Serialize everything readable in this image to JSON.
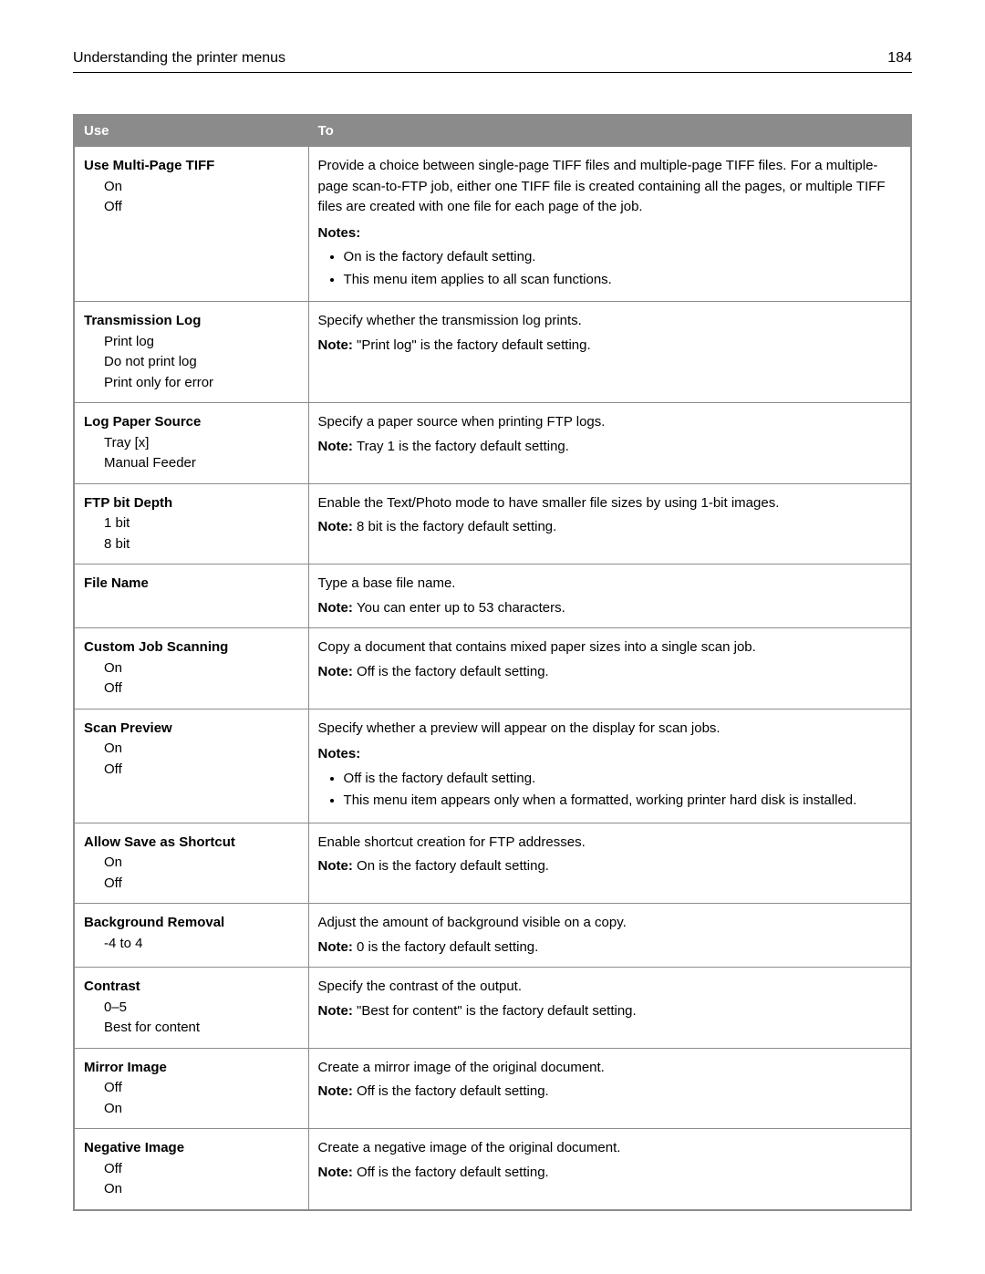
{
  "header": {
    "title": "Understanding the printer menus",
    "page": "184"
  },
  "columns": {
    "use": "Use",
    "to": "To"
  },
  "noteLabel": "Note:",
  "notesLabel": "Notes:",
  "rows": [
    {
      "name": "Use Multi‑Page TIFF",
      "options": [
        "On",
        "Off"
      ],
      "description": "Provide a choice between single-page TIFF files and multiple‑page TIFF files. For a multiple-page scan‑to‑FTP job, either one TIFF file is created containing all the pages, or multiple TIFF files are created with one file for each page of the job.",
      "notes": [
        "On is the factory default setting.",
        "This menu item applies to all scan functions."
      ]
    },
    {
      "name": "Transmission Log",
      "options": [
        "Print log",
        "Do not print log",
        "Print only for error"
      ],
      "description": "Specify whether the transmission log prints.",
      "note": "\"Print log\" is the factory default setting."
    },
    {
      "name": "Log Paper Source",
      "options": [
        "Tray [x]",
        "Manual Feeder"
      ],
      "description": "Specify a paper source when printing FTP logs.",
      "note": "Tray 1 is the factory default setting."
    },
    {
      "name": "FTP bit Depth",
      "options": [
        "1 bit",
        "8 bit"
      ],
      "description": "Enable the Text/Photo mode to have smaller file sizes by using 1‑bit images.",
      "note": "8 bit is the factory default setting."
    },
    {
      "name": "File Name",
      "options": [],
      "description": "Type a base file name.",
      "note": "You can enter up to 53 characters."
    },
    {
      "name": "Custom Job Scanning",
      "options": [
        "On",
        "Off"
      ],
      "description": "Copy a document that contains mixed paper sizes into a single scan job.",
      "note": "Off is the factory default setting."
    },
    {
      "name": "Scan Preview",
      "options": [
        "On",
        "Off"
      ],
      "description": "Specify whether a preview will appear on the display for scan jobs.",
      "notes": [
        "Off is the factory default setting.",
        "This menu item appears only when a formatted, working printer hard disk is installed."
      ]
    },
    {
      "name": "Allow Save as Shortcut",
      "options": [
        "On",
        "Off"
      ],
      "description": "Enable shortcut creation for FTP addresses.",
      "note": "On is the factory default setting."
    },
    {
      "name": "Background Removal",
      "options": [
        "-4 to 4"
      ],
      "description": "Adjust the amount of background visible on a copy.",
      "note": "0 is the factory default setting."
    },
    {
      "name": "Contrast",
      "options": [
        "0–5",
        "Best for content"
      ],
      "description": "Specify the contrast of the output.",
      "note": "\"Best for content\" is the factory default setting."
    },
    {
      "name": "Mirror Image",
      "options": [
        "Off",
        "On"
      ],
      "description": "Create a mirror image of the original document.",
      "note": "Off is the factory default setting."
    },
    {
      "name": "Negative Image",
      "options": [
        "Off",
        "On"
      ],
      "description": "Create a negative image of the original document.",
      "note": "Off is the factory default setting."
    }
  ]
}
